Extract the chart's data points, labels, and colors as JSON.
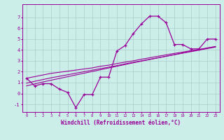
{
  "xlabel": "Windchill (Refroidissement éolien,°C)",
  "background_color": "#cceee8",
  "line_color": "#990099",
  "grid_color": "#aacccc",
  "hours": [
    0,
    1,
    2,
    3,
    4,
    5,
    6,
    7,
    8,
    9,
    10,
    11,
    12,
    13,
    14,
    15,
    16,
    17,
    18,
    19,
    20,
    21,
    22,
    23
  ],
  "windchill": [
    1.4,
    0.7,
    0.9,
    0.9,
    0.4,
    0.1,
    -1.3,
    -0.1,
    -0.1,
    1.5,
    1.5,
    3.9,
    4.4,
    5.5,
    6.4,
    7.1,
    7.1,
    6.5,
    4.5,
    4.5,
    4.1,
    4.1,
    5.0,
    5.0
  ],
  "reg_line1": [
    1.4,
    1.55,
    1.7,
    1.85,
    1.95,
    2.05,
    2.15,
    2.25,
    2.35,
    2.5,
    2.6,
    2.75,
    2.88,
    3.0,
    3.15,
    3.28,
    3.42,
    3.55,
    3.68,
    3.8,
    3.93,
    4.05,
    4.18,
    4.3
  ],
  "reg_line2": [
    0.95,
    1.12,
    1.28,
    1.44,
    1.58,
    1.72,
    1.86,
    2.0,
    2.14,
    2.28,
    2.42,
    2.56,
    2.72,
    2.86,
    3.0,
    3.14,
    3.28,
    3.42,
    3.56,
    3.7,
    3.84,
    3.98,
    4.12,
    4.26
  ],
  "reg_line3": [
    0.7,
    0.88,
    1.06,
    1.22,
    1.38,
    1.54,
    1.7,
    1.86,
    2.02,
    2.18,
    2.34,
    2.5,
    2.66,
    2.82,
    2.97,
    3.12,
    3.27,
    3.42,
    3.57,
    3.72,
    3.87,
    4.02,
    4.17,
    4.32
  ],
  "ylim": [
    -1.7,
    8.2
  ],
  "yticks": [
    -1,
    0,
    1,
    2,
    3,
    4,
    5,
    6,
    7
  ],
  "xlim": [
    -0.5,
    23.5
  ]
}
